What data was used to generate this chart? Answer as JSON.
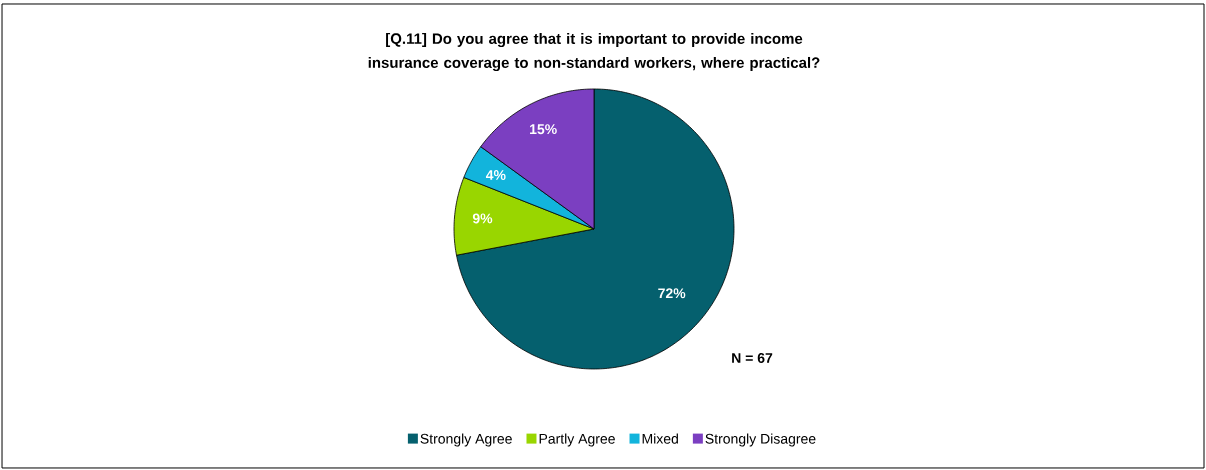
{
  "chart_data": {
    "type": "pie",
    "title": "[Q.11] Do you agree that it is important to provide income insurance coverage to non-standard workers, where practical?",
    "categories": [
      "Strongly Agree",
      "Partly Agree",
      "Mixed",
      "Strongly Disagree"
    ],
    "values": [
      72,
      9,
      4,
      15
    ],
    "colors": [
      "#05606e",
      "#99d600",
      "#12b4dc",
      "#7b3fc1"
    ],
    "value_labels": [
      "72%",
      "9%",
      "4%",
      "15%"
    ],
    "annotations": [
      "N = 67"
    ],
    "legend": "bottom"
  }
}
